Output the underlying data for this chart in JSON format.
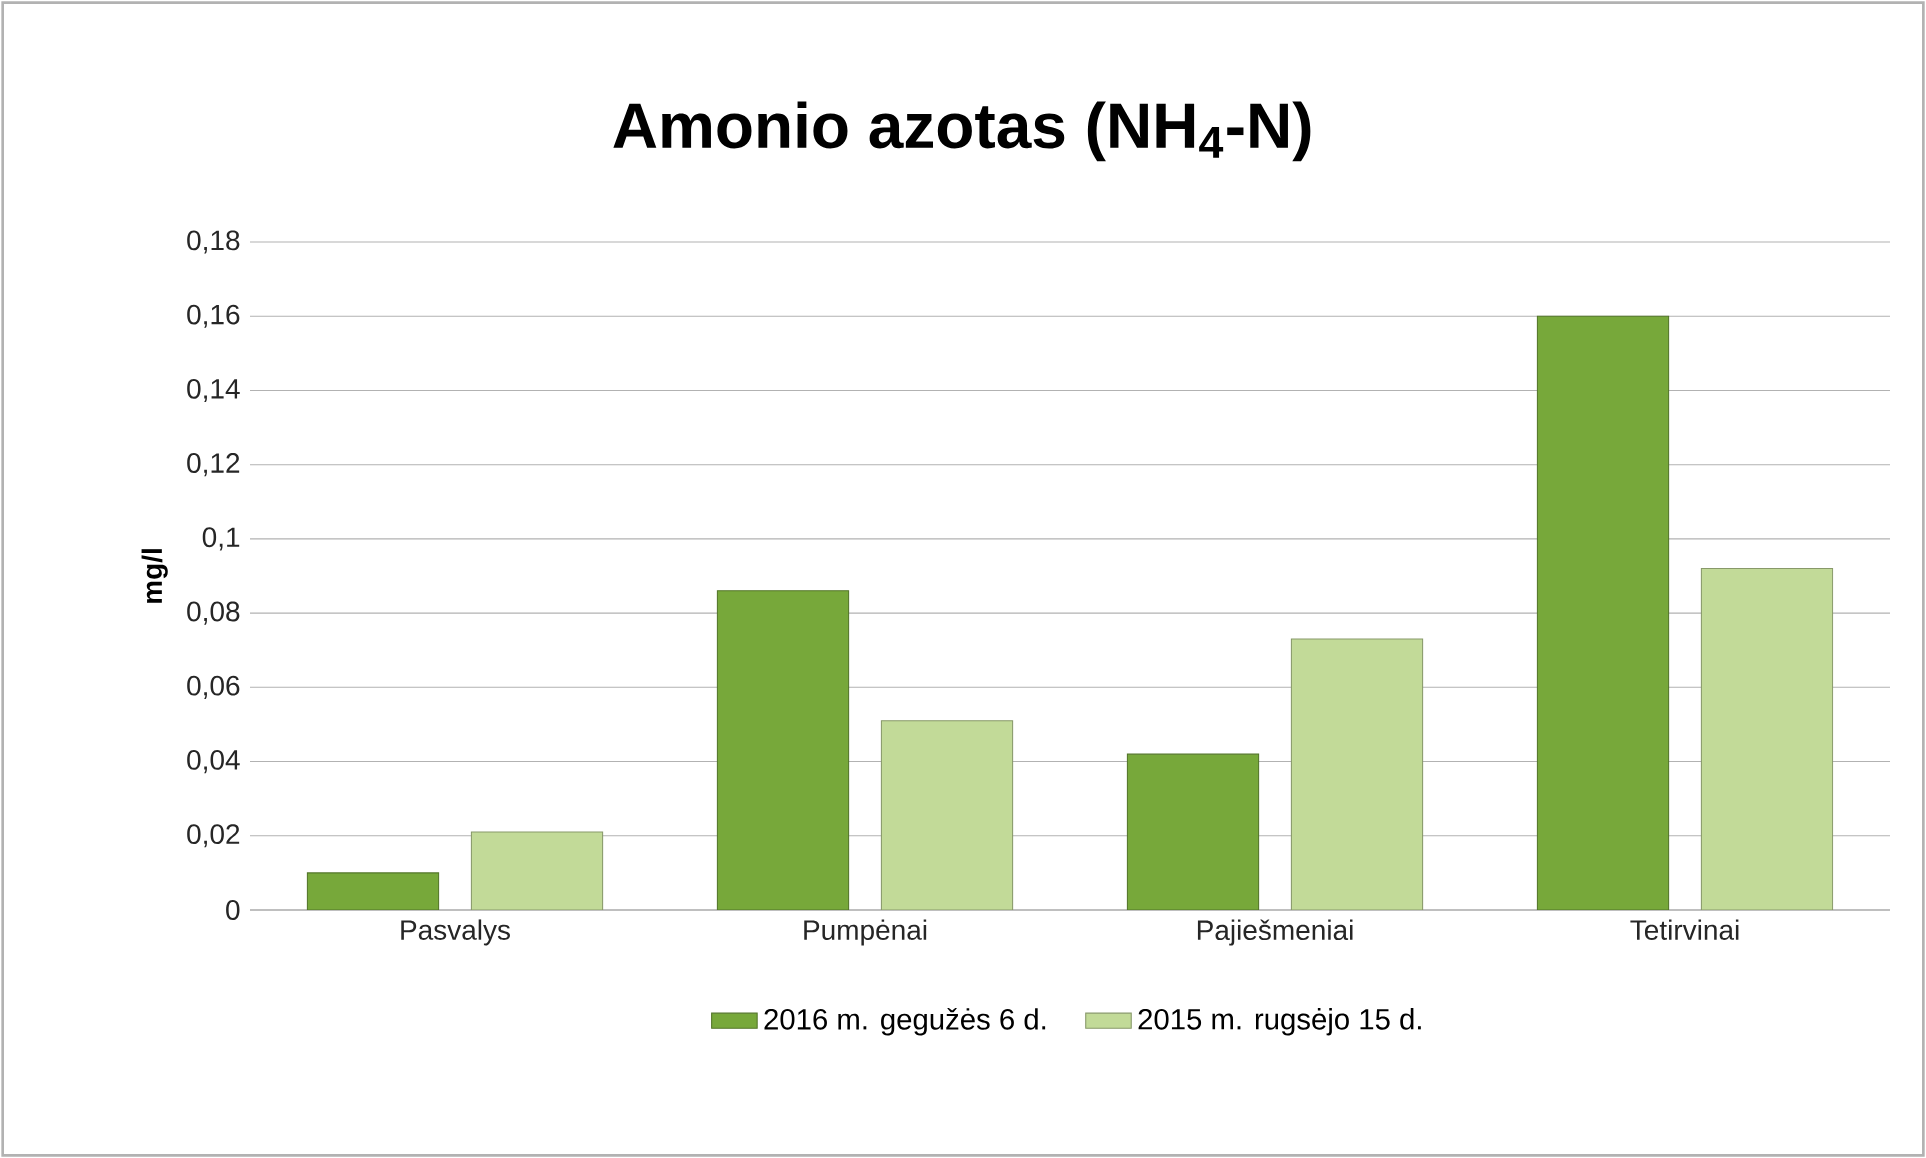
{
  "chart_data": {
    "type": "bar",
    "title": "Amonio azotas (NH$_{4}$-N)",
    "ylabel": "mg/l",
    "categories": [
      "Pasvalys",
      "Pumpėnai",
      "Pajiešmeniai",
      "Tetirvinai"
    ],
    "series": [
      {
        "name": "2016 m. gegužės 6 d.",
        "color": "#77a83a",
        "values": [
          0.01,
          0.086,
          0.042,
          0.16
        ]
      },
      {
        "name": "2015 m. rugsėjo 15 d.",
        "color": "#c2da98",
        "values": [
          0.021,
          0.051,
          0.073,
          0.092
        ]
      }
    ],
    "ylim": [
      0,
      0.18
    ],
    "yticks": [
      0,
      {
        "value": 0.02,
        "label": "0,02"
      },
      {
        "value": 0.04,
        "label": "0,04"
      },
      {
        "value": 0.06,
        "label": "0,06"
      },
      {
        "value": 0.08,
        "label": "0,08"
      },
      {
        "value": 0.1,
        "label": "0,1"
      },
      {
        "value": 0.12,
        "label": "0,12"
      },
      {
        "value": 0.14,
        "label": "0,14"
      },
      {
        "value": 0.16,
        "label": "0,16"
      },
      {
        "value": 0.18,
        "label": "0,18"
      }
    ],
    "grid": "y",
    "legend": "bottom"
  }
}
